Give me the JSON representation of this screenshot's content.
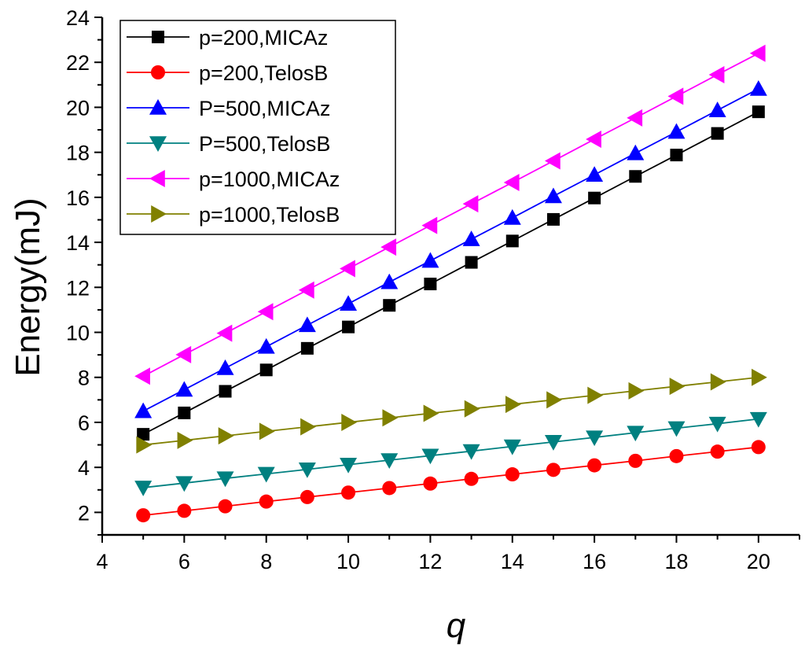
{
  "chart_data": {
    "type": "line",
    "title": "",
    "xlabel": "q",
    "ylabel": "Energy(mJ)",
    "xlim": [
      4,
      21
    ],
    "ylim": [
      1,
      24
    ],
    "xticks": [
      4,
      6,
      8,
      10,
      12,
      14,
      16,
      18,
      20
    ],
    "yticks": [
      2,
      4,
      6,
      8,
      10,
      12,
      14,
      16,
      18,
      20,
      22,
      24
    ],
    "grid": false,
    "legend_position": "top-left",
    "x": [
      5,
      6,
      7,
      8,
      9,
      10,
      11,
      12,
      13,
      14,
      15,
      16,
      17,
      18,
      19,
      20
    ],
    "series": [
      {
        "name": "p=200,MICAz",
        "color": "#000000",
        "marker": "square",
        "values": [
          5.47,
          6.42,
          7.38,
          8.33,
          9.29,
          10.24,
          11.2,
          12.15,
          13.11,
          14.06,
          15.02,
          15.97,
          16.93,
          17.88,
          18.84,
          19.8
        ]
      },
      {
        "name": "p=200,TelosB",
        "color": "#ff0000",
        "marker": "circle",
        "values": [
          1.87,
          2.07,
          2.27,
          2.48,
          2.68,
          2.88,
          3.08,
          3.28,
          3.49,
          3.69,
          3.89,
          4.09,
          4.29,
          4.5,
          4.7,
          4.9
        ]
      },
      {
        "name": "P=500,MICAz",
        "color": "#0000ff",
        "marker": "triangle-up",
        "values": [
          6.5,
          7.45,
          8.41,
          9.36,
          10.32,
          11.27,
          12.23,
          13.18,
          14.14,
          15.09,
          16.05,
          17.0,
          17.96,
          18.91,
          19.87,
          20.82
        ]
      },
      {
        "name": "P=500,TelosB",
        "color": "#008080",
        "marker": "triangle-down",
        "values": [
          3.1,
          3.3,
          3.51,
          3.71,
          3.91,
          4.12,
          4.32,
          4.52,
          4.72,
          4.93,
          5.13,
          5.33,
          5.54,
          5.74,
          5.94,
          6.15
        ]
      },
      {
        "name": "p=1000,MICAz",
        "color": "#ff00ff",
        "marker": "triangle-left",
        "values": [
          8.05,
          9.01,
          9.96,
          10.92,
          11.88,
          12.83,
          13.79,
          14.75,
          15.71,
          16.66,
          17.62,
          18.58,
          19.53,
          20.49,
          21.45,
          22.4
        ]
      },
      {
        "name": "p=1000,TelosB",
        "color": "#808000",
        "marker": "triangle-right",
        "values": [
          5.0,
          5.2,
          5.4,
          5.6,
          5.8,
          6.0,
          6.2,
          6.4,
          6.6,
          6.8,
          7.0,
          7.2,
          7.4,
          7.6,
          7.8,
          8.0
        ]
      }
    ]
  }
}
